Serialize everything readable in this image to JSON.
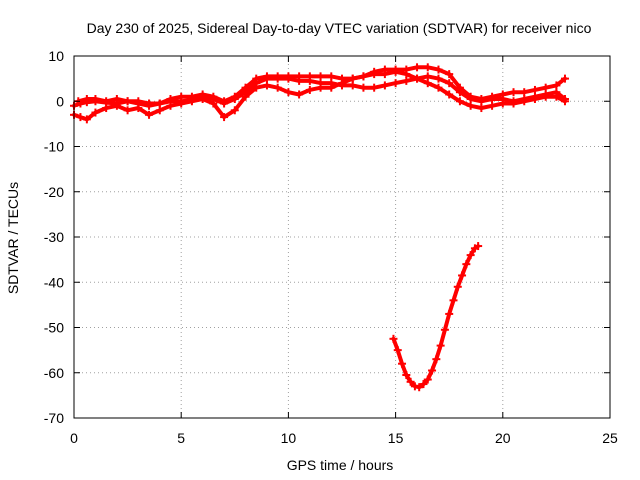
{
  "chart_data": {
    "type": "scatter",
    "title": "Day 230 of 2025, Sidereal Day-to-day VTEC variation (SDTVAR) for receiver nico",
    "xlabel": "GPS time / hours",
    "ylabel": "SDTVAR / TECUs",
    "xlim": [
      0,
      25
    ],
    "ylim": [
      -70,
      10
    ],
    "xticks": [
      0,
      5,
      10,
      15,
      20,
      25
    ],
    "yticks": [
      -70,
      -60,
      -50,
      -40,
      -30,
      -20,
      -10,
      0,
      10
    ],
    "grid": true,
    "color": "#ff0000",
    "series": [
      {
        "name": "satellite tracks near zero (band a)",
        "x": [
          0.0,
          0.3,
          0.6,
          1.0,
          1.5,
          2.0,
          2.5,
          3.0,
          3.5,
          4.0,
          4.5,
          5.0,
          5.5,
          6.0,
          6.5,
          7.0,
          7.5,
          8.0,
          8.5,
          9.0,
          9.5,
          10.0,
          10.5,
          11.0,
          11.5,
          12.0,
          12.5,
          13.0,
          13.5,
          14.0,
          14.5,
          15.0,
          15.5,
          16.0,
          16.5,
          17.0,
          17.5,
          18.0,
          18.5,
          19.0,
          19.5,
          20.0,
          20.5,
          21.0,
          21.5,
          22.0,
          22.5,
          22.9
        ],
        "y": [
          -1.0,
          -0.5,
          -0.2,
          0.0,
          -0.3,
          -0.5,
          0.0,
          -0.5,
          -1.0,
          -0.5,
          0.0,
          0.0,
          0.3,
          0.8,
          0.5,
          -0.5,
          0.5,
          2.0,
          4.0,
          5.0,
          5.0,
          5.0,
          4.5,
          4.5,
          4.0,
          4.0,
          3.5,
          3.5,
          3.0,
          3.0,
          3.5,
          4.0,
          4.5,
          5.0,
          5.5,
          5.0,
          4.0,
          2.0,
          0.5,
          0.0,
          0.5,
          0.5,
          0.0,
          0.5,
          1.0,
          1.5,
          2.0,
          0.5
        ]
      },
      {
        "name": "satellite tracks near zero (band b)",
        "x": [
          0.0,
          0.3,
          0.6,
          1.0,
          1.5,
          2.0,
          2.5,
          3.0,
          3.5,
          4.0,
          4.5,
          5.0,
          5.5,
          6.0,
          6.5,
          7.0,
          7.5,
          8.0,
          8.5,
          9.0,
          9.5,
          10.0,
          10.5,
          11.0,
          11.5,
          12.0,
          12.5,
          13.0,
          13.5,
          14.0,
          14.5,
          15.0,
          15.5,
          16.0,
          16.5,
          17.0,
          17.5,
          18.0,
          18.5,
          19.0,
          19.5,
          20.0,
          20.5,
          21.0,
          21.5,
          22.0,
          22.5,
          22.9
        ],
        "y": [
          -3.0,
          -3.5,
          -4.0,
          -2.5,
          -1.5,
          -1.0,
          -2.0,
          -1.5,
          -3.0,
          -2.0,
          -1.0,
          -0.5,
          0.0,
          0.5,
          -0.5,
          -3.5,
          -2.0,
          1.0,
          3.0,
          3.5,
          3.0,
          2.0,
          1.5,
          2.5,
          3.0,
          3.0,
          4.0,
          5.0,
          5.5,
          6.0,
          6.0,
          6.5,
          6.0,
          5.0,
          4.0,
          3.0,
          1.5,
          0.0,
          -1.0,
          -1.5,
          -1.0,
          -0.5,
          -0.5,
          0.0,
          0.5,
          1.0,
          1.0,
          0.0
        ]
      },
      {
        "name": "satellite tracks near zero (band c)",
        "x": [
          0.2,
          0.6,
          1.0,
          1.5,
          2.0,
          2.5,
          3.0,
          3.5,
          4.0,
          4.5,
          5.0,
          5.5,
          6.0,
          6.5,
          7.0,
          7.5,
          8.0,
          8.5,
          9.0,
          9.5,
          10.0,
          10.5,
          11.0,
          11.5,
          12.0,
          12.5,
          13.0,
          13.5,
          14.0,
          14.5,
          15.0,
          15.5,
          16.0,
          16.5,
          17.0,
          17.5,
          18.0,
          18.5,
          19.0,
          19.5,
          20.0,
          20.5,
          21.0,
          21.5,
          22.0,
          22.5,
          22.9
        ],
        "y": [
          0.0,
          0.5,
          0.5,
          0.0,
          0.5,
          0.0,
          0.0,
          -0.5,
          -0.5,
          0.5,
          1.0,
          1.0,
          1.5,
          1.0,
          0.0,
          1.0,
          3.0,
          5.0,
          5.5,
          5.5,
          5.5,
          5.5,
          5.5,
          5.5,
          5.5,
          5.0,
          5.0,
          5.5,
          6.5,
          7.0,
          7.0,
          7.0,
          7.5,
          7.5,
          7.0,
          6.0,
          3.0,
          1.0,
          0.5,
          1.0,
          1.5,
          2.0,
          2.0,
          2.5,
          3.0,
          3.5,
          5.0
        ]
      },
      {
        "name": "satellite track dipping to -63",
        "x": [
          14.9,
          15.1,
          15.3,
          15.5,
          15.7,
          15.9,
          16.1,
          16.3,
          16.5,
          16.7,
          16.9,
          17.1,
          17.3,
          17.5,
          17.7,
          17.9,
          18.1,
          18.3,
          18.5,
          18.7,
          18.85
        ],
        "y": [
          -52.5,
          -55.0,
          -58.0,
          -60.5,
          -62.0,
          -63.0,
          -63.2,
          -62.5,
          -61.5,
          -59.5,
          -57.0,
          -54.0,
          -50.5,
          -47.0,
          -44.0,
          -41.0,
          -38.5,
          -36.0,
          -34.0,
          -32.5,
          -32.0
        ]
      }
    ]
  }
}
